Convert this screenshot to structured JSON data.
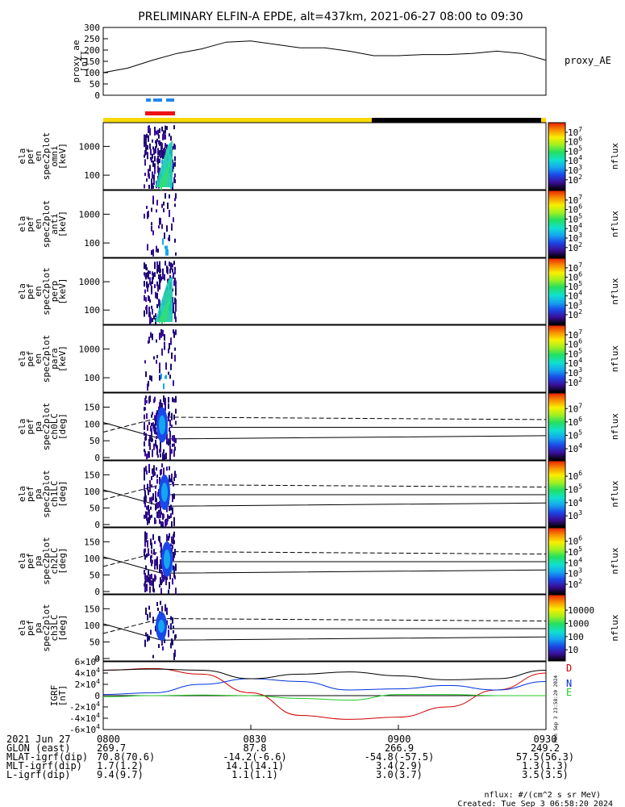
{
  "title": "PRELIMINARY ELFIN-A EPDE, alt=437km, 2021-06-27 08:00 to 09:30",
  "x_axis": {
    "tick_labels": [
      "0800",
      "0830",
      "0900",
      "0930"
    ],
    "rows": [
      {
        "label": "2021 Jun 27",
        "values": [
          "0800",
          "0830",
          "0900",
          "0930"
        ]
      },
      {
        "label": "GLON (east)",
        "values": [
          "269.7",
          "87.8",
          "266.9",
          "249.2"
        ]
      },
      {
        "label": "MLAT-igrf(dip)",
        "values": [
          "70.8(70.6)",
          "-14.2(-6.6)",
          "-54.8(-57.5)",
          "57.5(56.3)"
        ]
      },
      {
        "label": "MLT-igrf(dip)",
        "values": [
          "1.7(1.2)",
          "14.1(14.1)",
          "3.4(2.9)",
          "1.3(1.3)"
        ]
      },
      {
        "label": "L-igrf(dip)",
        "values": [
          "9.4(9.7)",
          "1.1(1.1)",
          "3.0(3.7)",
          "3.5(3.5)"
        ]
      }
    ]
  },
  "footer": {
    "units": "nflux: #/(cm^2 s sr MeV)",
    "created": "Created: Tue Sep  3 06:58:20 2024"
  },
  "side_stamp": "Mon Sep  3 23:58:20 2024",
  "chart_data": [
    {
      "type": "line",
      "ylabel": [
        "proxy_ae",
        "[nT]"
      ],
      "legend": "proxy_AE",
      "ylim": [
        0,
        300
      ],
      "yticks": [
        "0",
        "50",
        "100",
        "150",
        "200",
        "250",
        "300"
      ],
      "series": [
        {
          "name": "proxy_AE",
          "x_min": [
            0,
            5,
            10,
            15,
            20,
            25,
            30,
            35,
            40,
            45,
            50,
            55,
            60,
            65,
            70,
            75,
            80,
            85,
            90
          ],
          "values": [
            100,
            120,
            155,
            185,
            205,
            235,
            240,
            225,
            210,
            210,
            195,
            175,
            175,
            180,
            180,
            185,
            195,
            185,
            155
          ]
        }
      ]
    },
    {
      "type": "heatmap",
      "ylabel": [
        "ela",
        "pef",
        "en",
        "spec2plot",
        "omni",
        "[keV]"
      ],
      "yticks": [
        "100",
        "1000"
      ],
      "colorbar": {
        "label": "nflux",
        "ticks": [
          "10^2",
          "10^3",
          "10^4",
          "10^5",
          "10^6",
          "10^7"
        ]
      }
    },
    {
      "type": "heatmap",
      "ylabel": [
        "ela",
        "pef",
        "en",
        "spec2plot",
        "anti",
        "[keV]"
      ],
      "yticks": [
        "100",
        "1000"
      ],
      "colorbar": {
        "label": "nflux",
        "ticks": [
          "10^2",
          "10^3",
          "10^4",
          "10^5",
          "10^6",
          "10^7"
        ]
      }
    },
    {
      "type": "heatmap",
      "ylabel": [
        "ela",
        "pef",
        "en",
        "spec2plot",
        "perp",
        "[keV]"
      ],
      "yticks": [
        "100",
        "1000"
      ],
      "colorbar": {
        "label": "nflux",
        "ticks": [
          "10^2",
          "10^3",
          "10^4",
          "10^5",
          "10^6",
          "10^7"
        ]
      }
    },
    {
      "type": "heatmap",
      "ylabel": [
        "ela",
        "pef",
        "en",
        "spec2plot",
        "para",
        "[keV]"
      ],
      "yticks": [
        "100",
        "1000"
      ],
      "colorbar": {
        "label": "nflux",
        "ticks": [
          "10^2",
          "10^3",
          "10^4",
          "10^5",
          "10^6",
          "10^7"
        ]
      }
    },
    {
      "type": "heatmap",
      "ylabel": [
        "ela",
        "pef",
        "pa",
        "spec2plot",
        "ch0LC",
        "[deg]"
      ],
      "yticks": [
        "0",
        "50",
        "100",
        "150"
      ],
      "colorbar": {
        "label": "nflux",
        "ticks": [
          "10^4",
          "10^5",
          "10^6",
          "10^7"
        ]
      }
    },
    {
      "type": "heatmap",
      "ylabel": [
        "ela",
        "pef",
        "pa",
        "spec2plot",
        "ch1LC",
        "[deg]"
      ],
      "yticks": [
        "0",
        "50",
        "100",
        "150"
      ],
      "colorbar": {
        "label": "nflux",
        "ticks": [
          "10^3",
          "10^4",
          "10^5",
          "10^6"
        ]
      }
    },
    {
      "type": "heatmap",
      "ylabel": [
        "ela",
        "pef",
        "pa",
        "spec2plot",
        "ch2LC",
        "[deg]"
      ],
      "yticks": [
        "0",
        "50",
        "100",
        "150"
      ],
      "colorbar": {
        "label": "nflux",
        "ticks": [
          "10^2",
          "10^3",
          "10^4",
          "10^5",
          "10^6"
        ]
      }
    },
    {
      "type": "heatmap",
      "ylabel": [
        "ela",
        "pef",
        "pa",
        "spec2plot",
        "ch3LC",
        "[deg]"
      ],
      "yticks": [
        "0",
        "50",
        "100",
        "150"
      ],
      "colorbar": {
        "label": "nflux",
        "ticks": [
          "10",
          "100",
          "1000",
          "10000"
        ]
      }
    },
    {
      "type": "line",
      "ylabel": [
        "IGRF",
        "[nT]"
      ],
      "ylim": [
        -60000,
        60000
      ],
      "yticks": [
        "-6x10^4",
        "-4x10^4",
        "-2x10^4",
        "0",
        "2x10^4",
        "4x10^4",
        "6x10^4"
      ],
      "series": [
        {
          "name": "D",
          "color": "#d00000",
          "x_min": [
            0,
            10,
            20,
            30,
            40,
            50,
            60,
            70,
            80,
            90
          ],
          "values": [
            45000,
            48000,
            38000,
            5000,
            -35000,
            -42000,
            -38000,
            -20000,
            10000,
            40000
          ]
        },
        {
          "name": "N",
          "color": "#0033dd",
          "x_min": [
            0,
            10,
            20,
            30,
            40,
            50,
            60,
            70,
            80,
            90
          ],
          "values": [
            2000,
            5000,
            20000,
            30000,
            25000,
            10000,
            12000,
            18000,
            10000,
            25000
          ]
        },
        {
          "name": "E",
          "color": "#22cc22",
          "x_min": [
            0,
            10,
            20,
            30,
            40,
            50,
            60,
            70,
            80,
            90
          ],
          "values": [
            -2000,
            0,
            1000,
            0,
            -5000,
            -8000,
            2000,
            2000,
            0,
            0
          ]
        },
        {
          "name": "",
          "color": "#000000",
          "x_min": [
            0,
            10,
            20,
            30,
            40,
            50,
            60,
            70,
            80,
            90
          ],
          "values": [
            45000,
            47000,
            45000,
            30000,
            38000,
            42000,
            35000,
            28000,
            30000,
            45000
          ]
        }
      ]
    }
  ]
}
